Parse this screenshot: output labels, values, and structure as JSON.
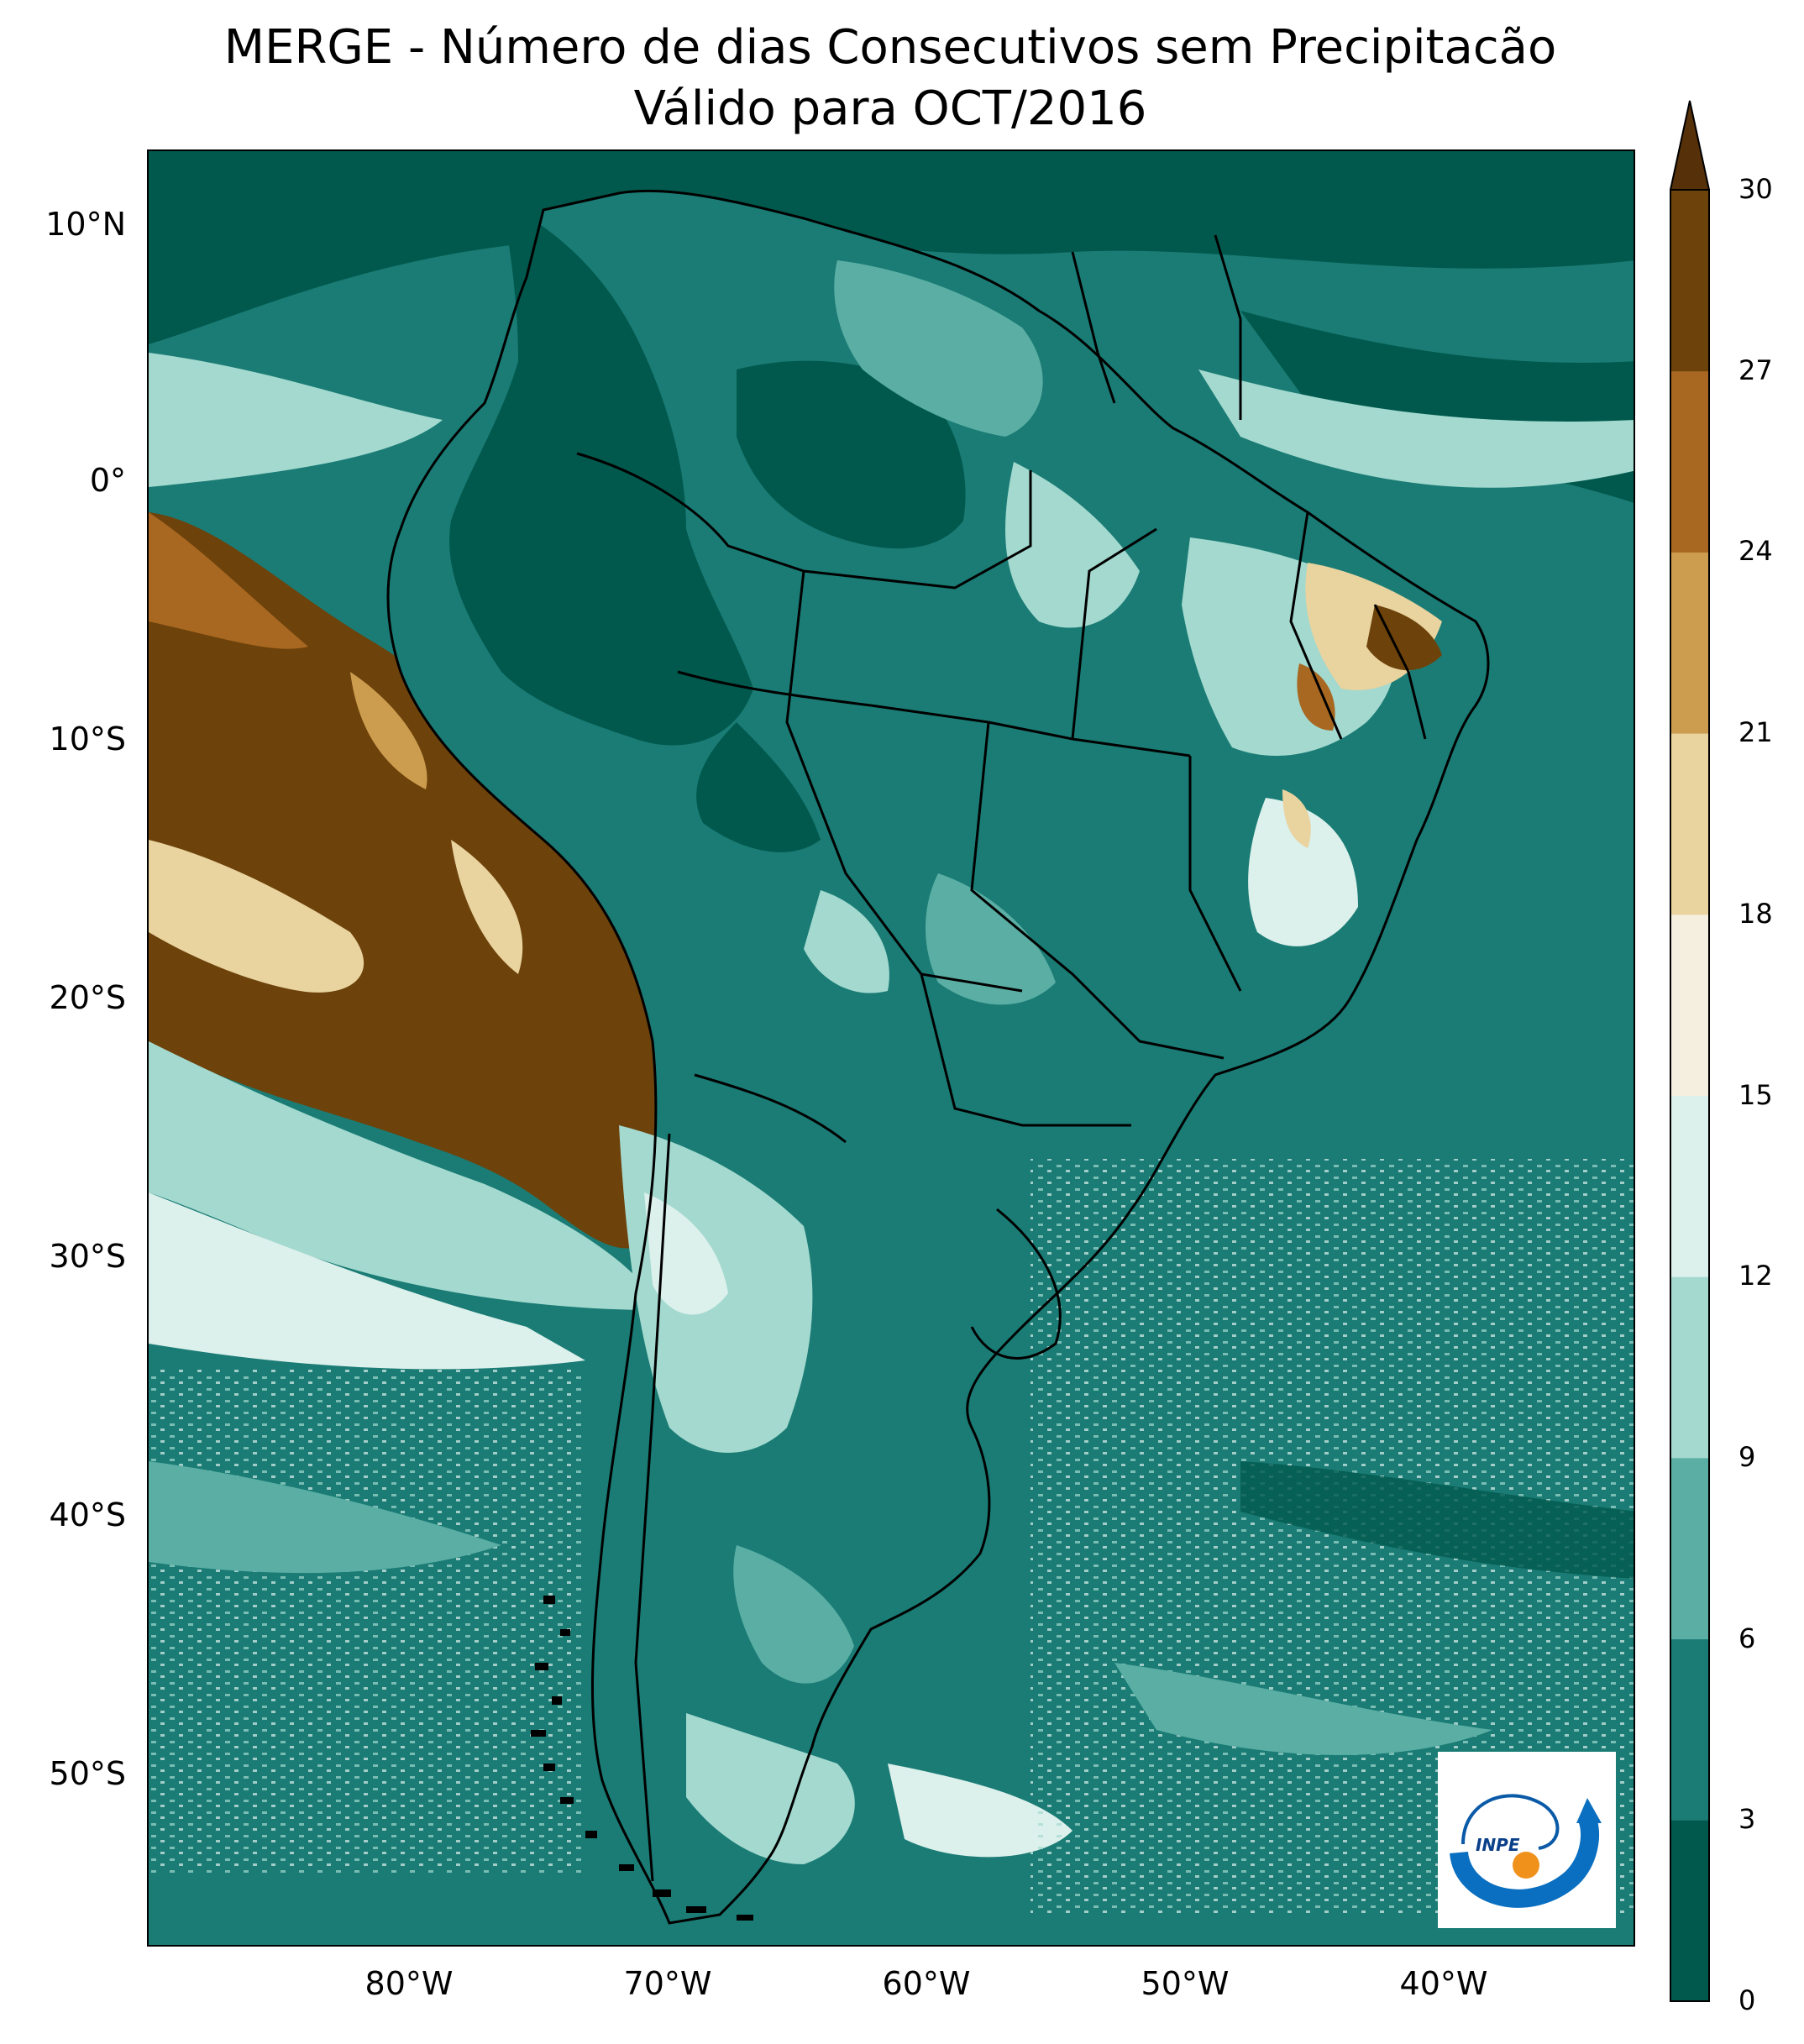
{
  "title": {
    "line1": "MERGE - Número de dias Consecutivos sem Precipitacão",
    "line2": "Válido para OCT/2016"
  },
  "axes": {
    "lat_ticks": [
      "10°N",
      "0°",
      "10°S",
      "20°S",
      "30°S",
      "40°S",
      "50°S"
    ],
    "lon_ticks": [
      "80°W",
      "70°W",
      "60°W",
      "50°W",
      "40°W"
    ]
  },
  "colorbar": {
    "ticks": [
      "30",
      "27",
      "24",
      "21",
      "18",
      "15",
      "12",
      "9",
      "6",
      "3",
      "0"
    ],
    "bins_low_to_high": [
      {
        "range": "0-3",
        "color": "#01594d"
      },
      {
        "range": "3-6",
        "color": "#1a7c75"
      },
      {
        "range": "6-9",
        "color": "#5aaea4"
      },
      {
        "range": "9-12",
        "color": "#a3d9cf"
      },
      {
        "range": "12-15",
        "color": "#dcf0ec"
      },
      {
        "range": "15-18",
        "color": "#f5efdf"
      },
      {
        "range": "18-21",
        "color": "#e9d39f"
      },
      {
        "range": "21-24",
        "color": "#cc9d4e"
      },
      {
        "range": "24-27",
        "color": "#a86821"
      },
      {
        "range": "27-30",
        "color": "#6d420b"
      },
      {
        "range": ">30",
        "color": "#553008"
      }
    ],
    "extend": "max"
  },
  "logo": {
    "text": "INPE"
  }
}
